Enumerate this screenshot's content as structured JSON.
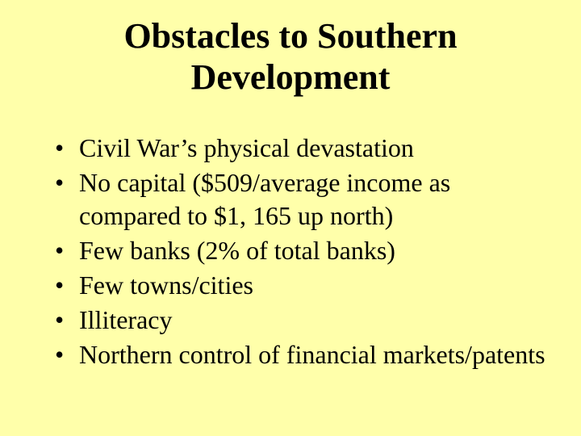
{
  "slide": {
    "background_color": "#ffffaa",
    "text_color": "#000000",
    "title": "Obstacles to Southern Development",
    "title_fontsize": 44,
    "title_fontweight": "bold",
    "bullet_fontsize": 32,
    "bullets": [
      "Civil War’s physical devastation",
      "No capital ($509/average income as compared to $1, 165 up north)",
      "Few banks (2% of total banks)",
      "Few towns/cities",
      "Illiteracy",
      "Northern control of financial markets/patents"
    ]
  }
}
